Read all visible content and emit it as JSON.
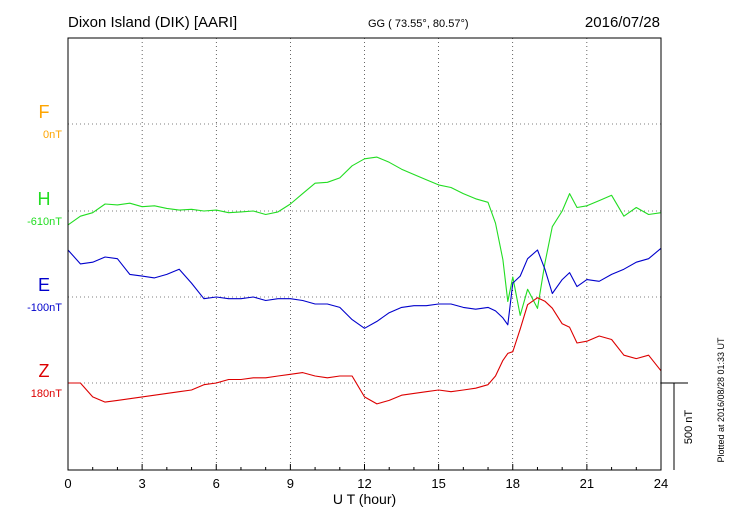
{
  "header": {
    "title": "Dixon Island (DIK)  [AARI]",
    "coords": "GG ( 73.55°,  80.57°)",
    "date": "2016/07/28"
  },
  "footer": {
    "plotted": "Plotted at 2016/08/28 01:33 UT"
  },
  "chart_data": {
    "type": "line",
    "xlabel": "U T (hour)",
    "xlim": [
      0,
      24
    ],
    "xticks": [
      0,
      3,
      6,
      9,
      12,
      15,
      18,
      21,
      24
    ],
    "scale_bar": "500 nT",
    "grid": true,
    "colors": {
      "F": "#ffa500",
      "H": "#22dd22",
      "E": "#0000cc",
      "Z": "#dd0000"
    },
    "series": [
      {
        "name": "F",
        "baseline": "0nT",
        "x": [],
        "y": []
      },
      {
        "name": "H",
        "baseline": "-610nT",
        "x": [
          0,
          0.5,
          1,
          1.5,
          2,
          2.5,
          3,
          3.5,
          4,
          4.5,
          5,
          5.5,
          6,
          6.5,
          7,
          7.5,
          8,
          8.5,
          9,
          9.5,
          10,
          10.5,
          11,
          11.5,
          12,
          12.5,
          13,
          13.5,
          14,
          14.5,
          15,
          15.5,
          16,
          16.5,
          17,
          17.3,
          17.6,
          17.8,
          18,
          18.3,
          18.6,
          19,
          19.3,
          19.6,
          20,
          20.3,
          20.6,
          21,
          21.5,
          22,
          22.5,
          23,
          23.5,
          24
        ],
        "y": [
          -80,
          -30,
          -10,
          40,
          35,
          45,
          25,
          30,
          15,
          5,
          10,
          0,
          5,
          -10,
          -5,
          0,
          -20,
          -5,
          40,
          100,
          160,
          165,
          190,
          260,
          300,
          310,
          280,
          240,
          210,
          180,
          150,
          135,
          100,
          70,
          50,
          -70,
          -280,
          -520,
          -380,
          -600,
          -450,
          -560,
          -300,
          -90,
          0,
          100,
          20,
          30,
          60,
          90,
          -30,
          20,
          -20,
          -10
        ]
      },
      {
        "name": "E",
        "baseline": "-100nT",
        "x": [
          0,
          0.5,
          1,
          1.5,
          2,
          2.5,
          3,
          3.5,
          4,
          4.5,
          5,
          5.5,
          6,
          6.5,
          7,
          7.5,
          8,
          8.5,
          9,
          9.5,
          10,
          10.5,
          11,
          11.5,
          12,
          12.5,
          13,
          13.5,
          14,
          14.5,
          15,
          15.5,
          16,
          16.5,
          17,
          17.3,
          17.6,
          17.8,
          18,
          18.3,
          18.6,
          19,
          19.3,
          19.6,
          20,
          20.3,
          20.6,
          21,
          21.5,
          22,
          22.5,
          23,
          23.5,
          24
        ],
        "y": [
          270,
          190,
          200,
          230,
          220,
          130,
          120,
          110,
          130,
          160,
          80,
          -10,
          0,
          -10,
          -10,
          0,
          -20,
          -10,
          -10,
          -20,
          -40,
          -40,
          -60,
          -130,
          -180,
          -140,
          -90,
          -60,
          -50,
          -50,
          -40,
          -40,
          -60,
          -70,
          -60,
          -80,
          -120,
          -160,
          80,
          120,
          220,
          270,
          160,
          20,
          100,
          140,
          60,
          100,
          90,
          130,
          160,
          200,
          220,
          280
        ]
      },
      {
        "name": "Z",
        "baseline": "180nT",
        "x": [
          0,
          0.5,
          1,
          1.5,
          2,
          2.5,
          3,
          3.5,
          4,
          4.5,
          5,
          5.5,
          6,
          6.5,
          7,
          7.5,
          8,
          8.5,
          9,
          9.5,
          10,
          10.5,
          11,
          11.5,
          12,
          12.5,
          13,
          13.5,
          14,
          14.5,
          15,
          15.5,
          16,
          16.5,
          17,
          17.3,
          17.6,
          17.8,
          18,
          18.3,
          18.6,
          19,
          19.3,
          19.6,
          20,
          20.3,
          20.6,
          21,
          21.5,
          22,
          22.5,
          23,
          23.5,
          24
        ],
        "y": [
          0,
          0,
          -80,
          -110,
          -100,
          -90,
          -80,
          -70,
          -60,
          -50,
          -40,
          -10,
          0,
          20,
          20,
          30,
          30,
          40,
          50,
          60,
          40,
          30,
          40,
          40,
          -80,
          -120,
          -100,
          -70,
          -60,
          -50,
          -40,
          -50,
          -40,
          -30,
          -10,
          40,
          130,
          170,
          180,
          310,
          450,
          490,
          470,
          430,
          340,
          320,
          230,
          240,
          270,
          250,
          160,
          140,
          160,
          70
        ]
      }
    ]
  }
}
